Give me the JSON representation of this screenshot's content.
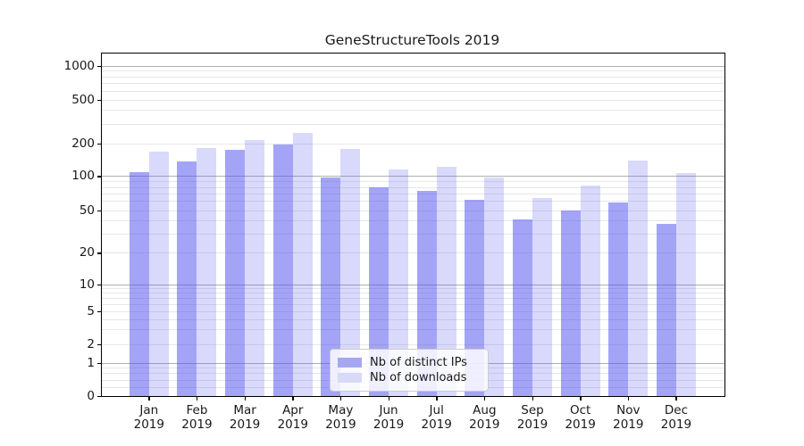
{
  "title": "GeneStructureTools 2019",
  "chart_data": {
    "type": "bar",
    "title": "GeneStructureTools 2019",
    "categories": [
      {
        "month": "Jan",
        "year": "2019"
      },
      {
        "month": "Feb",
        "year": "2019"
      },
      {
        "month": "Mar",
        "year": "2019"
      },
      {
        "month": "Apr",
        "year": "2019"
      },
      {
        "month": "May",
        "year": "2019"
      },
      {
        "month": "Jun",
        "year": "2019"
      },
      {
        "month": "Jul",
        "year": "2019"
      },
      {
        "month": "Aug",
        "year": "2019"
      },
      {
        "month": "Sep",
        "year": "2019"
      },
      {
        "month": "Oct",
        "year": "2019"
      },
      {
        "month": "Nov",
        "year": "2019"
      },
      {
        "month": "Dec",
        "year": "2019"
      }
    ],
    "series": [
      {
        "name": "Nb of distinct IPs",
        "color": "rgba(80,80,240,0.52)",
        "swatch_color": "#a6a6f3",
        "values": [
          108,
          135,
          175,
          195,
          97,
          80,
          74,
          62,
          41,
          50,
          58,
          37
        ]
      },
      {
        "name": "Nb of downloads",
        "color": "rgba(80,80,240,0.22)",
        "swatch_color": "#d9d9f8",
        "values": [
          168,
          180,
          215,
          248,
          178,
          115,
          122,
          97,
          64,
          82,
          138,
          107
        ]
      }
    ],
    "xlabel": "",
    "ylabel": "",
    "yscale": "symlog",
    "yticks": [
      0,
      1,
      2,
      5,
      10,
      20,
      50,
      100,
      200,
      500,
      1000
    ],
    "ylim": [
      0,
      1300
    ],
    "grid": "on",
    "legend_position": "lower center"
  },
  "colors": {
    "grid_major": "#b0b0b0",
    "grid_minor": "#e7e7e7",
    "spine": "#000000",
    "text": "#191919"
  }
}
